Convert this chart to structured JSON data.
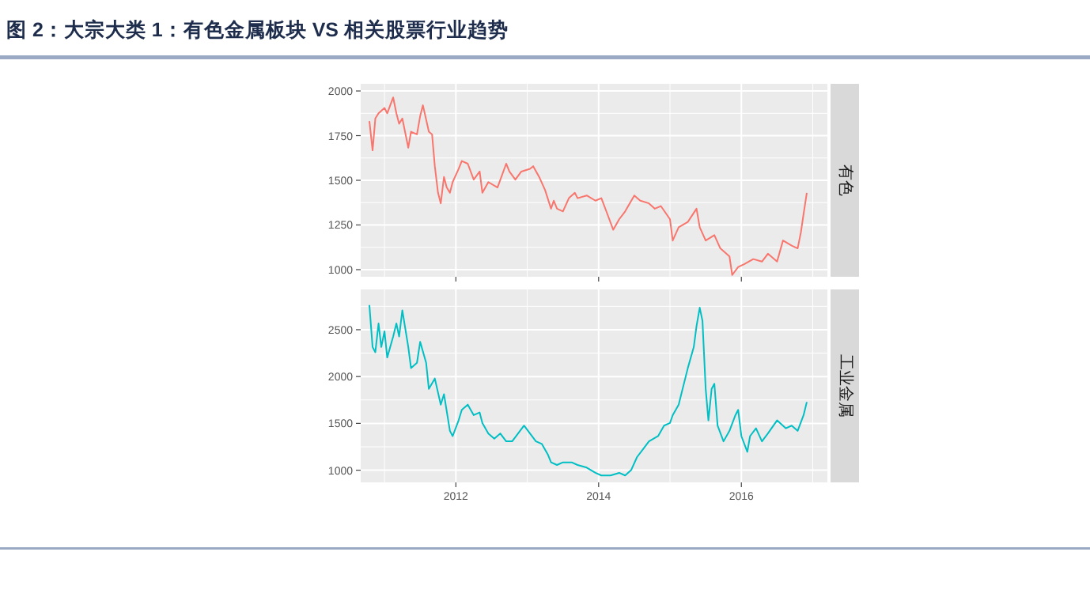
{
  "chart_data": [
    {
      "type": "line",
      "title": "图 2：大宗大类 1：有色金属板块 VS 相关股票行业趋势",
      "xlim": [
        "2010-09-01",
        "2017-03-15"
      ],
      "xticks": [
        "2012",
        "2014",
        "2016"
      ],
      "ylim": [
        960,
        2040
      ],
      "yticks": [
        1000,
        1250,
        1500,
        1750,
        2000
      ],
      "grid": true,
      "tick_labels": "y",
      "series": [
        {
          "name": "有色",
          "color": "#f8766d",
          "x": [
            "2010-10-15",
            "2010-11-01",
            "2010-11-15",
            "2010-12-01",
            "2011-01-01",
            "2011-01-15",
            "2011-02-15",
            "2011-03-01",
            "2011-03-15",
            "2011-04-01",
            "2011-05-01",
            "2011-05-15",
            "2011-06-15",
            "2011-07-01",
            "2011-07-15",
            "2011-08-15",
            "2011-09-01",
            "2011-09-15",
            "2011-10-01",
            "2011-10-15",
            "2011-11-01",
            "2011-11-15",
            "2011-12-01",
            "2011-12-15",
            "2012-01-15",
            "2012-02-01",
            "2012-03-01",
            "2012-04-01",
            "2012-05-01",
            "2012-05-15",
            "2012-06-15",
            "2012-08-01",
            "2012-09-15",
            "2012-10-01",
            "2012-11-01",
            "2012-12-01",
            "2013-01-15",
            "2013-02-01",
            "2013-03-01",
            "2013-04-01",
            "2013-05-01",
            "2013-05-15",
            "2013-06-01",
            "2013-07-01",
            "2013-08-01",
            "2013-09-01",
            "2013-09-15",
            "2013-11-01",
            "2013-12-15",
            "2014-01-15",
            "2014-02-15",
            "2014-03-15",
            "2014-04-15",
            "2014-05-15",
            "2014-07-01",
            "2014-08-01",
            "2014-09-15",
            "2014-10-15",
            "2014-11-15",
            "2015-01-01",
            "2015-01-15",
            "2015-02-15",
            "2015-04-01",
            "2015-05-15",
            "2015-06-01",
            "2015-07-01",
            "2015-08-15",
            "2015-09-15",
            "2015-11-01",
            "2015-11-15",
            "2015-12-15",
            "2016-01-15",
            "2016-03-01",
            "2016-04-15",
            "2016-05-15",
            "2016-07-01",
            "2016-08-01",
            "2016-09-15",
            "2016-10-15",
            "2016-11-01",
            "2016-11-15",
            "2016-12-01"
          ],
          "values": [
            1831,
            1668,
            1846,
            1875,
            1905,
            1875,
            1964,
            1875,
            1816,
            1846,
            1682,
            1772,
            1757,
            1860,
            1920,
            1772,
            1757,
            1579,
            1430,
            1371,
            1519,
            1460,
            1430,
            1490,
            1564,
            1608,
            1593,
            1504,
            1549,
            1430,
            1490,
            1460,
            1593,
            1549,
            1504,
            1549,
            1564,
            1579,
            1519,
            1445,
            1341,
            1386,
            1341,
            1326,
            1400,
            1430,
            1400,
            1415,
            1386,
            1400,
            1312,
            1223,
            1282,
            1326,
            1415,
            1386,
            1371,
            1341,
            1356,
            1282,
            1163,
            1237,
            1267,
            1341,
            1237,
            1163,
            1193,
            1119,
            1074,
            970,
            1015,
            1030,
            1059,
            1045,
            1089,
            1045,
            1163,
            1134,
            1119,
            1208,
            1312,
            1430
          ]
        }
      ]
    },
    {
      "type": "line",
      "xlim": [
        "2010-09-01",
        "2017-03-15"
      ],
      "xticks": [
        "2012",
        "2014",
        "2016"
      ],
      "ylim": [
        870,
        2930
      ],
      "yticks": [
        1000,
        1500,
        2000,
        2500
      ],
      "grid": true,
      "series": [
        {
          "name": "工业金属",
          "color": "#00bfc4",
          "x": [
            "2010-10-15",
            "2010-11-01",
            "2010-11-15",
            "2010-12-01",
            "2010-12-15",
            "2011-01-01",
            "2011-01-15",
            "2011-02-15",
            "2011-03-01",
            "2011-03-15",
            "2011-04-01",
            "2011-05-01",
            "2011-05-15",
            "2011-06-15",
            "2011-07-01",
            "2011-08-01",
            "2011-08-15",
            "2011-09-15",
            "2011-10-15",
            "2011-11-01",
            "2011-12-01",
            "2011-12-15",
            "2012-01-15",
            "2012-02-01",
            "2012-03-01",
            "2012-04-01",
            "2012-05-01",
            "2012-05-15",
            "2012-06-15",
            "2012-07-15",
            "2012-08-15",
            "2012-09-15",
            "2012-10-15",
            "2012-11-15",
            "2012-12-15",
            "2013-01-15",
            "2013-02-15",
            "2013-03-15",
            "2013-04-15",
            "2013-05-01",
            "2013-06-01",
            "2013-07-01",
            "2013-08-15",
            "2013-09-15",
            "2013-11-01",
            "2013-12-15",
            "2014-01-15",
            "2014-03-01",
            "2014-04-15",
            "2014-05-15",
            "2014-06-15",
            "2014-07-15",
            "2014-08-15",
            "2014-09-15",
            "2014-11-01",
            "2014-12-01",
            "2015-01-01",
            "2015-01-15",
            "2015-02-15",
            "2015-04-01",
            "2015-05-01",
            "2015-05-15",
            "2015-06-01",
            "2015-06-15",
            "2015-07-01",
            "2015-07-15",
            "2015-08-01",
            "2015-08-15",
            "2015-09-01",
            "2015-10-01",
            "2015-11-01",
            "2015-12-01",
            "2015-12-15",
            "2016-01-01",
            "2016-02-01",
            "2016-02-15",
            "2016-03-15",
            "2016-04-15",
            "2016-05-15",
            "2016-07-01",
            "2016-08-15",
            "2016-09-15",
            "2016-10-15",
            "2016-11-15",
            "2016-12-01"
          ],
          "values": [
            2763,
            2315,
            2259,
            2567,
            2315,
            2483,
            2203,
            2427,
            2567,
            2427,
            2707,
            2315,
            2091,
            2147,
            2371,
            2147,
            1868,
            1979,
            1700,
            1812,
            1420,
            1364,
            1532,
            1644,
            1700,
            1588,
            1616,
            1504,
            1392,
            1336,
            1392,
            1308,
            1308,
            1392,
            1476,
            1392,
            1308,
            1280,
            1168,
            1084,
            1056,
            1084,
            1084,
            1056,
            1028,
            972,
            944,
            944,
            972,
            944,
            1000,
            1140,
            1224,
            1308,
            1364,
            1476,
            1504,
            1588,
            1700,
            2091,
            2315,
            2539,
            2735,
            2595,
            1868,
            1532,
            1868,
            1923,
            1476,
            1308,
            1420,
            1588,
            1644,
            1364,
            1196,
            1364,
            1448,
            1308,
            1392,
            1532,
            1448,
            1476,
            1420,
            1588,
            1728
          ]
        }
      ]
    }
  ]
}
